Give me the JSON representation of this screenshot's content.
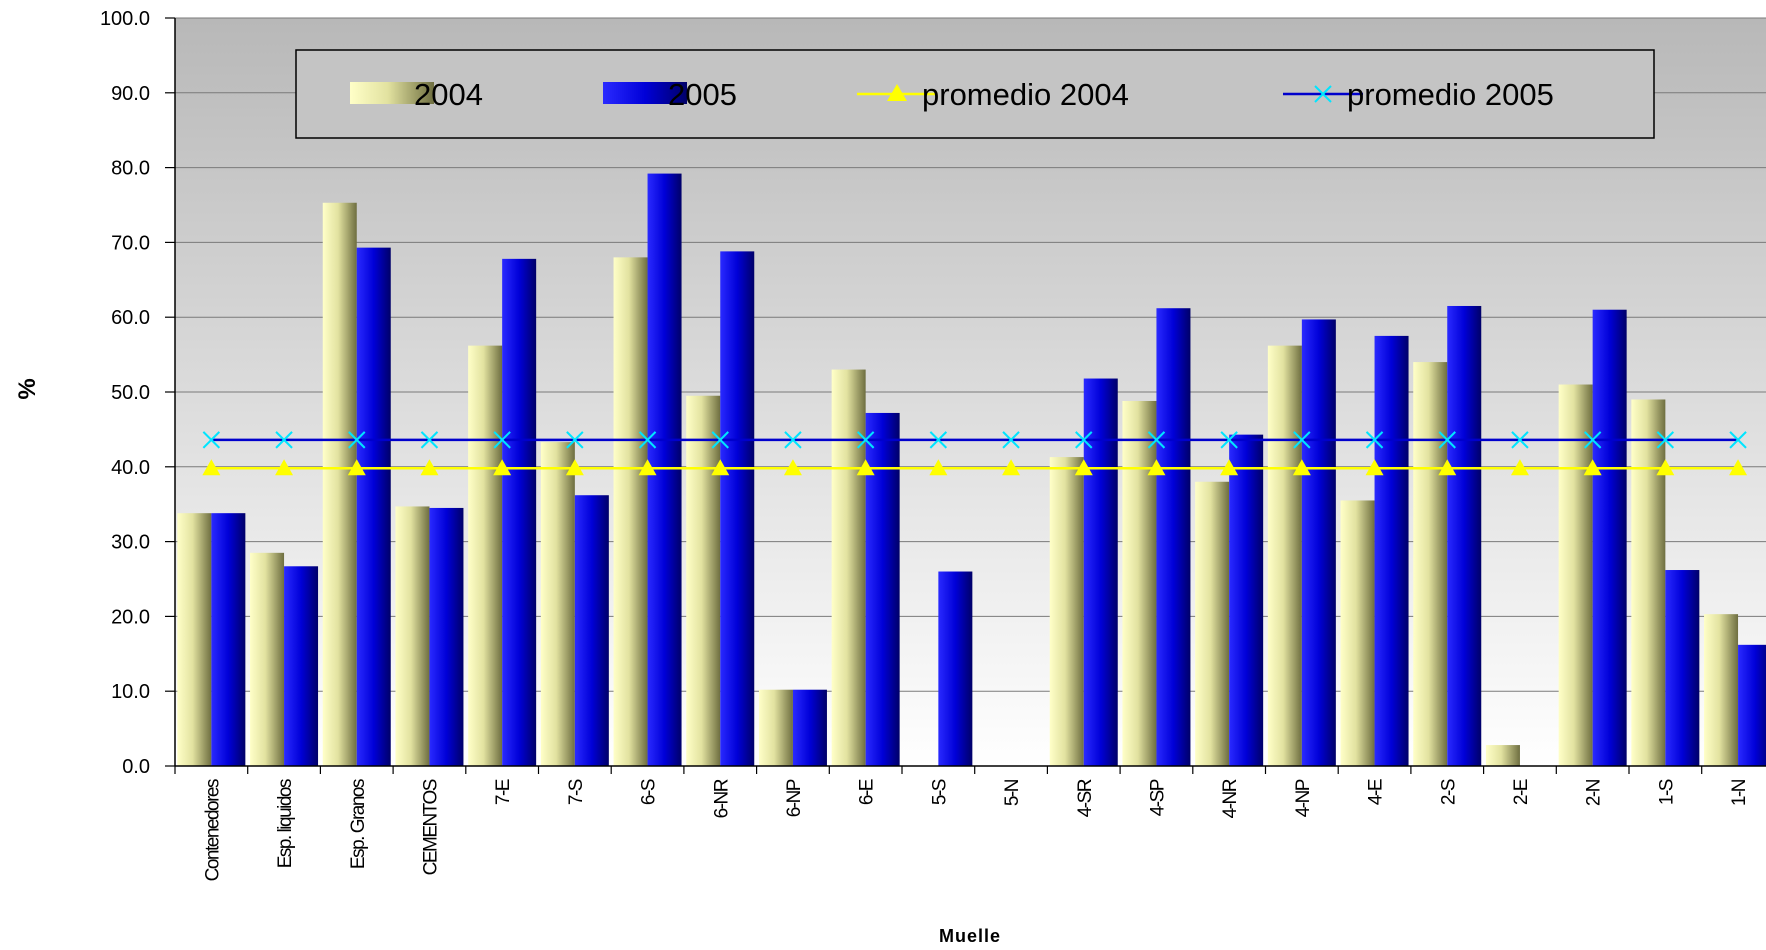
{
  "chart_data": {
    "type": "bar",
    "xlabel": "Muelle",
    "ylabel": "%",
    "ylim": [
      0,
      100
    ],
    "y_ticks": [
      "0.0",
      "10.0",
      "20.0",
      "30.0",
      "40.0",
      "50.0",
      "60.0",
      "70.0",
      "80.0",
      "90.0",
      "100.0"
    ],
    "grid": true,
    "legend_position": "top",
    "categories": [
      "Contenedores",
      "Esp. liquidos",
      "Esp. Granos",
      "CEMENTOS",
      "7-E",
      "7-S",
      "6-S",
      "6-NR",
      "6-NP",
      "6-E",
      "5-S",
      "5-N",
      "4-SR",
      "4-SP",
      "4-NR",
      "4-NP",
      "4-E",
      "2-S",
      "2-E",
      "2-N",
      "1-S",
      "1-N"
    ],
    "series": [
      {
        "name": "2004",
        "kind": "bar",
        "color": "#d8d88a",
        "values": [
          33.8,
          28.5,
          75.3,
          34.7,
          56.2,
          43.3,
          68.0,
          49.5,
          10.2,
          53.0,
          0,
          0,
          41.3,
          48.8,
          38.0,
          56.2,
          35.5,
          54.0,
          2.8,
          51.0,
          49.0,
          20.3
        ]
      },
      {
        "name": "2005",
        "kind": "bar",
        "color": "#0000dd",
        "values": [
          33.8,
          26.7,
          69.3,
          34.5,
          67.8,
          36.2,
          79.2,
          68.8,
          10.2,
          47.2,
          26.0,
          0,
          51.8,
          61.2,
          44.3,
          59.7,
          57.5,
          61.5,
          0,
          61.0,
          26.2,
          16.2
        ]
      },
      {
        "name": "promedio 2004",
        "kind": "line",
        "marker": "triangle",
        "color": "#ffff00",
        "value": 39.8
      },
      {
        "name": "promedio 2005",
        "kind": "line",
        "marker": "x",
        "color": "#0000cc",
        "marker_color": "#00e5ff",
        "value": 43.6
      }
    ]
  }
}
